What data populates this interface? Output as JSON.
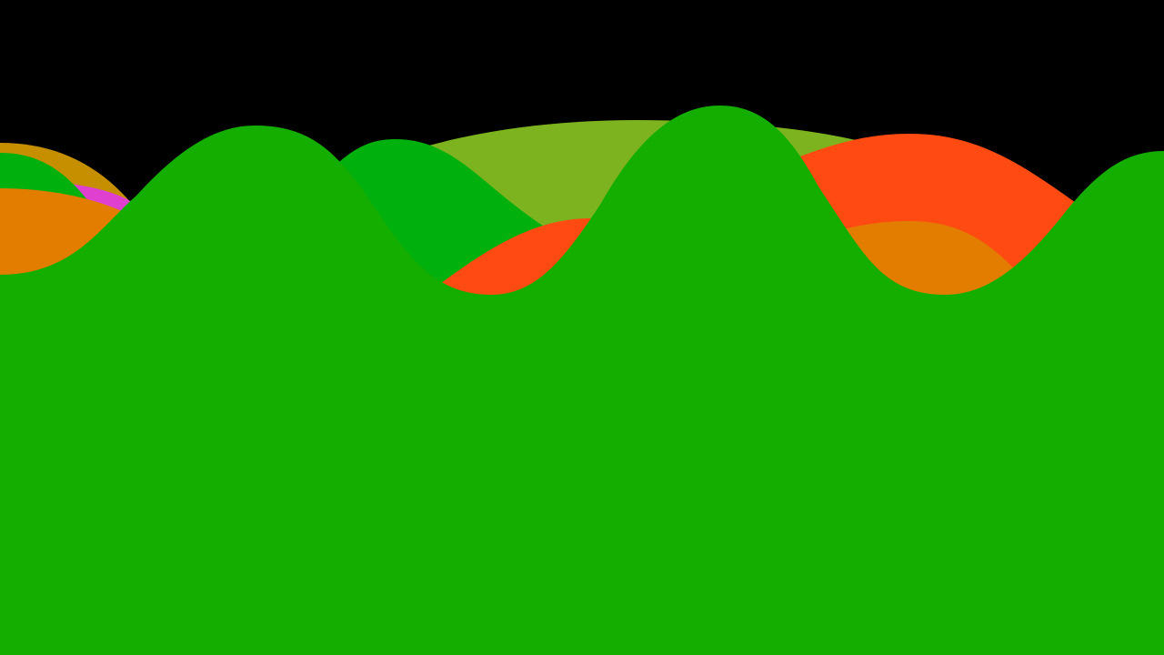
{
  "background_color": "#000000",
  "layers": [
    {
      "name": "olive-back-wave",
      "color": "#7cb31f"
    },
    {
      "name": "gold-left-wave",
      "color": "#c68f00"
    },
    {
      "name": "magenta-left-wave",
      "color": "#e040d0"
    },
    {
      "name": "green-left-wave",
      "color": "#00b00c"
    },
    {
      "name": "orange-left-wave",
      "color": "#e27d00"
    },
    {
      "name": "red-right-wave",
      "color": "#ff4b12"
    },
    {
      "name": "orange-right-wave",
      "color": "#e27d00"
    },
    {
      "name": "green-middle-wave",
      "color": "#00b00c"
    },
    {
      "name": "red-middle-wave",
      "color": "#ff4b12"
    },
    {
      "name": "green-front-wave",
      "color": "#14ae00"
    }
  ]
}
